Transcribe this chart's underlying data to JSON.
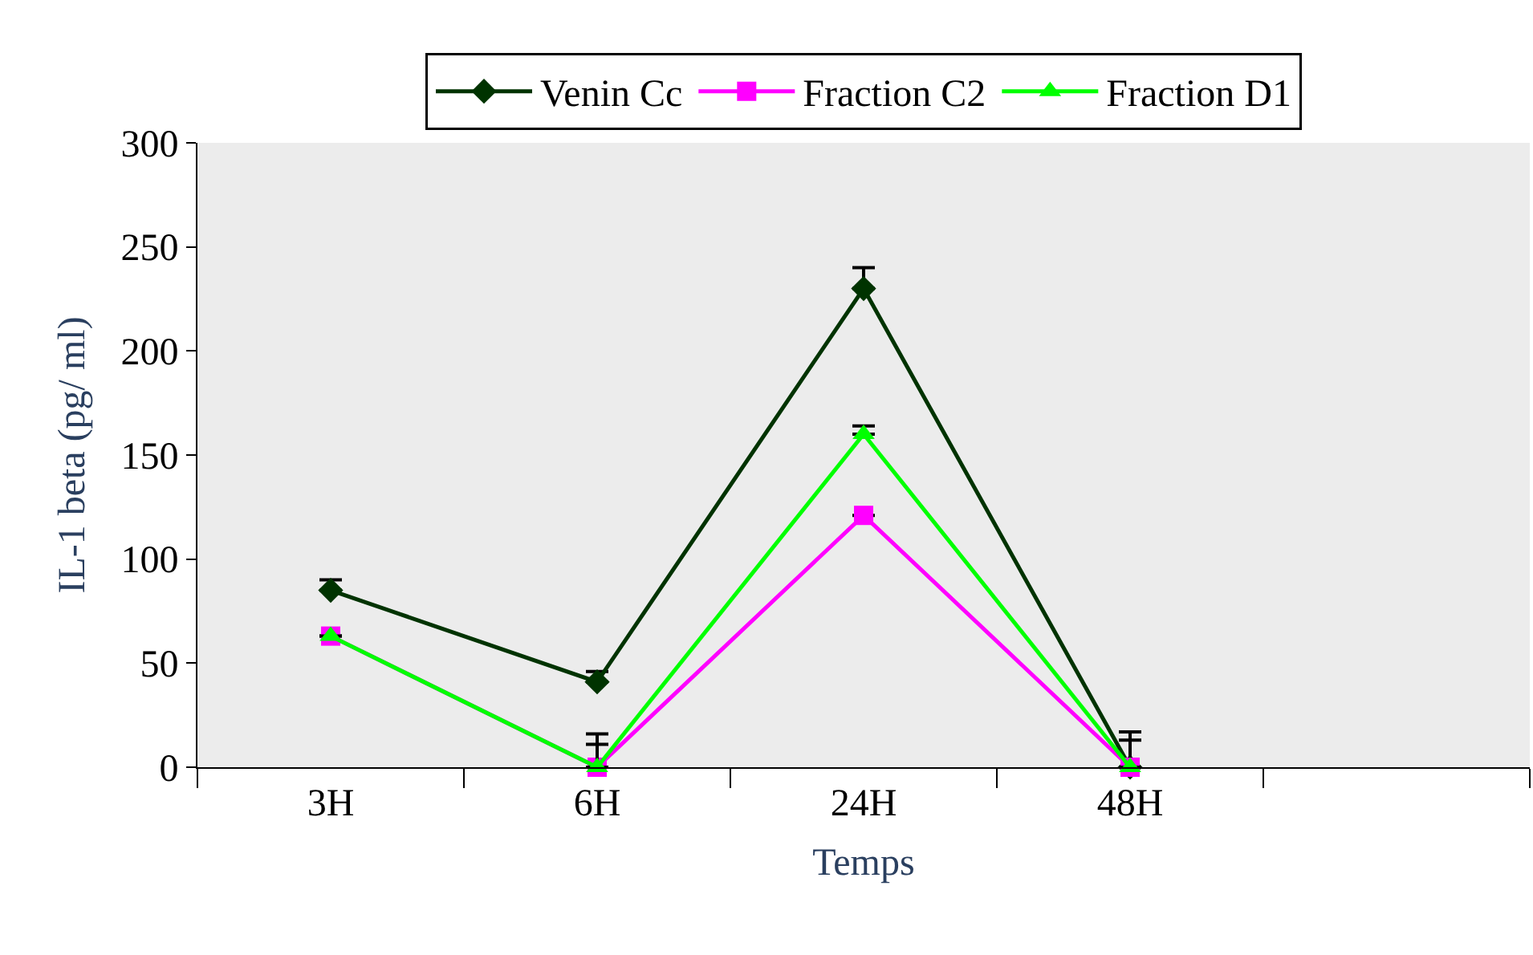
{
  "chart_data": {
    "type": "line",
    "xlabel": "Temps",
    "ylabel": "IL-1 beta (pg/ ml)",
    "categories": [
      "3H",
      "6H",
      "24H",
      "48H",
      null
    ],
    "series": [
      {
        "name": "Venin Cc",
        "color": "#003300",
        "marker": "diamond",
        "values": [
          85,
          41,
          230,
          0,
          null
        ],
        "errors": [
          [
            85,
            90
          ],
          [
            41,
            46
          ],
          [
            230,
            240
          ],
          [
            0,
            17
          ],
          null
        ]
      },
      {
        "name": "Fraction C2",
        "color": "#ff00ff",
        "marker": "square",
        "values": [
          63,
          0,
          121,
          0,
          null
        ],
        "errors": [
          null,
          [
            0,
            11
          ],
          null,
          [
            0,
            13
          ],
          null
        ]
      },
      {
        "name": "Fraction D1",
        "color": "#00ff00",
        "marker": "triangle",
        "values": [
          63,
          0,
          160,
          0,
          null
        ],
        "errors": [
          null,
          [
            0,
            16
          ],
          [
            160,
            164
          ],
          null,
          null
        ]
      }
    ],
    "ylim": [
      0,
      300
    ],
    "yticks": [
      0,
      50,
      100,
      150,
      200,
      250,
      300
    ],
    "grid": false,
    "legend": "top",
    "line_style": "solid"
  }
}
